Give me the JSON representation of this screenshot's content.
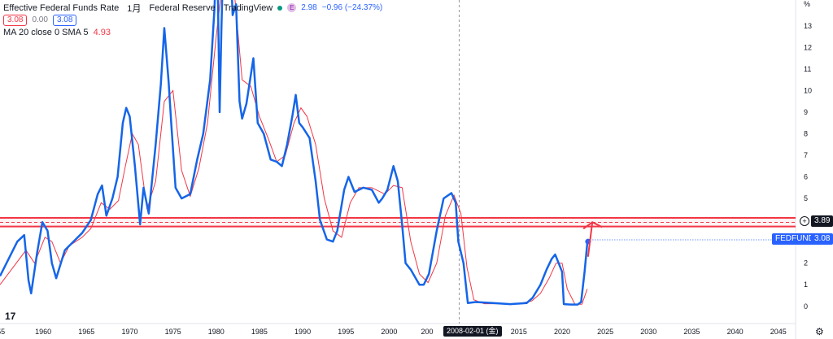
{
  "legend": {
    "title": "Effective Federal Funds Rate",
    "interval": "1月",
    "source": "Federal Reserve",
    "publisher": "TradingView",
    "e_icon": "E",
    "price": "2.98",
    "change": "−0.96 (−24.37%)",
    "bid": "3.08",
    "spread": "0.00",
    "ask": "3.08",
    "ma_label": "MA 20 close 0 SMA 5",
    "ma_value": "4.93"
  },
  "axis": {
    "unit": "%",
    "y_ticks": [
      "13",
      "12",
      "11",
      "10",
      "9",
      "8",
      "7",
      "6",
      "5",
      "4",
      "3",
      "2",
      "1",
      "0"
    ],
    "x_ticks": [
      "55",
      "1960",
      "1965",
      "1970",
      "1975",
      "1980",
      "1985",
      "1990",
      "1995",
      "2000",
      "200",
      "2015",
      "2020",
      "2025",
      "2030",
      "2035",
      "2040",
      "2045"
    ],
    "crosshair_date": "2008-02-01 (金)"
  },
  "badges": {
    "level_value": "3.89",
    "series_name": "FEDFUNDS",
    "series_value": "3.08"
  },
  "icons": {
    "logo": "tradingview-logo-icon",
    "settings": "gear-icon",
    "alert": "plus-circle-icon"
  },
  "colors": {
    "series": "#1565e8",
    "ma": "#f23645",
    "level": "#f23645",
    "annotation_arrow": "#f23645"
  },
  "chart_data": {
    "type": "line",
    "title": "Effective Federal Funds Rate",
    "ylabel": "%",
    "xlim": [
      1955,
      2047
    ],
    "ylim": [
      -0.8,
      14.2
    ],
    "grid": false,
    "series": [
      {
        "name": "FEDFUNDS",
        "x": [
          1955.0,
          1956.0,
          1957.0,
          1957.8,
          1958.3,
          1958.6,
          1959.3,
          1959.9,
          1960.5,
          1961.0,
          1961.5,
          1962.5,
          1963.5,
          1964.5,
          1965.5,
          1966.3,
          1966.8,
          1967.3,
          1968.0,
          1968.6,
          1969.2,
          1969.6,
          1970.0,
          1970.6,
          1971.2,
          1971.6,
          1972.2,
          1973.0,
          1973.6,
          1974.0,
          1974.5,
          1974.8,
          1975.3,
          1976.0,
          1977.0,
          1977.8,
          1978.5,
          1979.3,
          1979.8,
          1980.1,
          1980.4,
          1980.6,
          1981.0,
          1981.5,
          1981.9,
          1982.3,
          1982.7,
          1983.0,
          1983.5,
          1984.3,
          1984.8,
          1985.5,
          1986.3,
          1987.0,
          1987.6,
          1988.2,
          1988.8,
          1989.2,
          1989.6,
          1990.0,
          1990.8,
          1991.5,
          1992.0,
          1992.8,
          1993.5,
          1994.0,
          1994.8,
          1995.3,
          1996.0,
          1997.0,
          1998.0,
          1998.8,
          1999.2,
          1999.8,
          2000.5,
          2001.0,
          2001.5,
          2001.9,
          2002.5,
          2003.5,
          2004.0,
          2004.6,
          2005.5,
          2006.3,
          2007.2,
          2007.7,
          2008.0,
          2008.6,
          2009.1,
          2010.0,
          2012.0,
          2014.0,
          2015.9,
          2016.6,
          2017.5,
          2018.2,
          2018.8,
          2019.2,
          2019.6,
          2020.0,
          2020.2,
          2021.0,
          2021.8,
          2022.2,
          2022.6,
          2022.95
        ],
        "values": [
          1.4,
          2.2,
          3.0,
          3.3,
          1.2,
          0.6,
          2.5,
          3.9,
          3.5,
          2.0,
          1.3,
          2.6,
          3.0,
          3.4,
          4.0,
          5.2,
          5.6,
          4.2,
          5.0,
          6.0,
          8.5,
          9.2,
          8.8,
          6.5,
          3.8,
          5.5,
          4.3,
          7.5,
          10.3,
          12.9,
          10.4,
          8.5,
          5.5,
          5.0,
          5.2,
          6.8,
          8.0,
          10.5,
          13.8,
          17.0,
          9.0,
          12.8,
          19.1,
          17.8,
          13.5,
          14.0,
          9.5,
          8.7,
          9.4,
          11.5,
          8.5,
          8.0,
          6.8,
          6.7,
          6.5,
          7.5,
          8.8,
          9.8,
          8.5,
          8.3,
          7.8,
          5.8,
          4.0,
          3.1,
          3.0,
          3.5,
          5.4,
          6.0,
          5.3,
          5.5,
          5.4,
          4.8,
          5.0,
          5.4,
          6.5,
          5.8,
          3.8,
          2.0,
          1.7,
          1.0,
          1.0,
          1.5,
          3.5,
          5.0,
          5.25,
          4.8,
          3.0,
          2.0,
          0.15,
          0.2,
          0.15,
          0.1,
          0.15,
          0.4,
          1.0,
          1.7,
          2.2,
          2.4,
          2.0,
          1.6,
          0.1,
          0.08,
          0.08,
          0.2,
          1.6,
          3.08
        ]
      },
      {
        "name": "MA 20 close 0 SMA 5",
        "x": [
          1955.0,
          1956.5,
          1958.0,
          1959.0,
          1960.2,
          1961.0,
          1962.0,
          1963.0,
          1964.5,
          1965.5,
          1966.7,
          1967.7,
          1968.7,
          1969.5,
          1970.3,
          1971.0,
          1972.0,
          1973.0,
          1974.0,
          1975.0,
          1976.0,
          1977.0,
          1978.0,
          1979.0,
          1980.0,
          1981.0,
          1982.0,
          1983.0,
          1984.0,
          1985.0,
          1986.0,
          1987.0,
          1988.0,
          1989.0,
          1989.8,
          1990.5,
          1991.5,
          1992.5,
          1993.5,
          1994.5,
          1995.5,
          1996.5,
          1998.0,
          1999.5,
          2000.5,
          2001.5,
          2002.5,
          2003.5,
          2004.5,
          2005.5,
          2006.5,
          2007.5,
          2008.3,
          2009.0,
          2009.8,
          2011.0,
          2013.0,
          2015.0,
          2016.5,
          2017.5,
          2018.5,
          2019.3,
          2020.0,
          2020.6,
          2021.5,
          2022.3,
          2022.9
        ],
        "values": [
          1.0,
          1.8,
          2.6,
          2.0,
          3.2,
          3.0,
          2.0,
          2.8,
          3.2,
          3.6,
          4.8,
          4.5,
          4.9,
          6.5,
          8.0,
          7.5,
          4.5,
          5.8,
          9.5,
          10.0,
          6.3,
          5.1,
          6.4,
          8.5,
          12.5,
          16.0,
          15.0,
          10.5,
          10.2,
          8.8,
          7.8,
          6.7,
          7.0,
          8.5,
          9.2,
          8.8,
          7.5,
          5.0,
          3.5,
          3.2,
          4.8,
          5.5,
          5.5,
          5.2,
          5.6,
          5.5,
          3.0,
          1.5,
          1.1,
          2.0,
          4.2,
          5.15,
          4.3,
          1.8,
          0.3,
          0.12,
          0.12,
          0.12,
          0.25,
          0.6,
          1.3,
          2.0,
          2.0,
          0.8,
          0.08,
          0.1,
          0.8
        ]
      }
    ],
    "horizontal_levels": [
      4.1,
      3.89,
      3.7
    ],
    "annotations": [
      {
        "type": "marker",
        "x": 2023.0,
        "y": 3.0
      },
      {
        "type": "arrow",
        "x": [
          2023.0,
          2023.5
        ],
        "y": [
          2.3,
          3.9
        ]
      }
    ],
    "crosshair_x": 2008.1
  }
}
